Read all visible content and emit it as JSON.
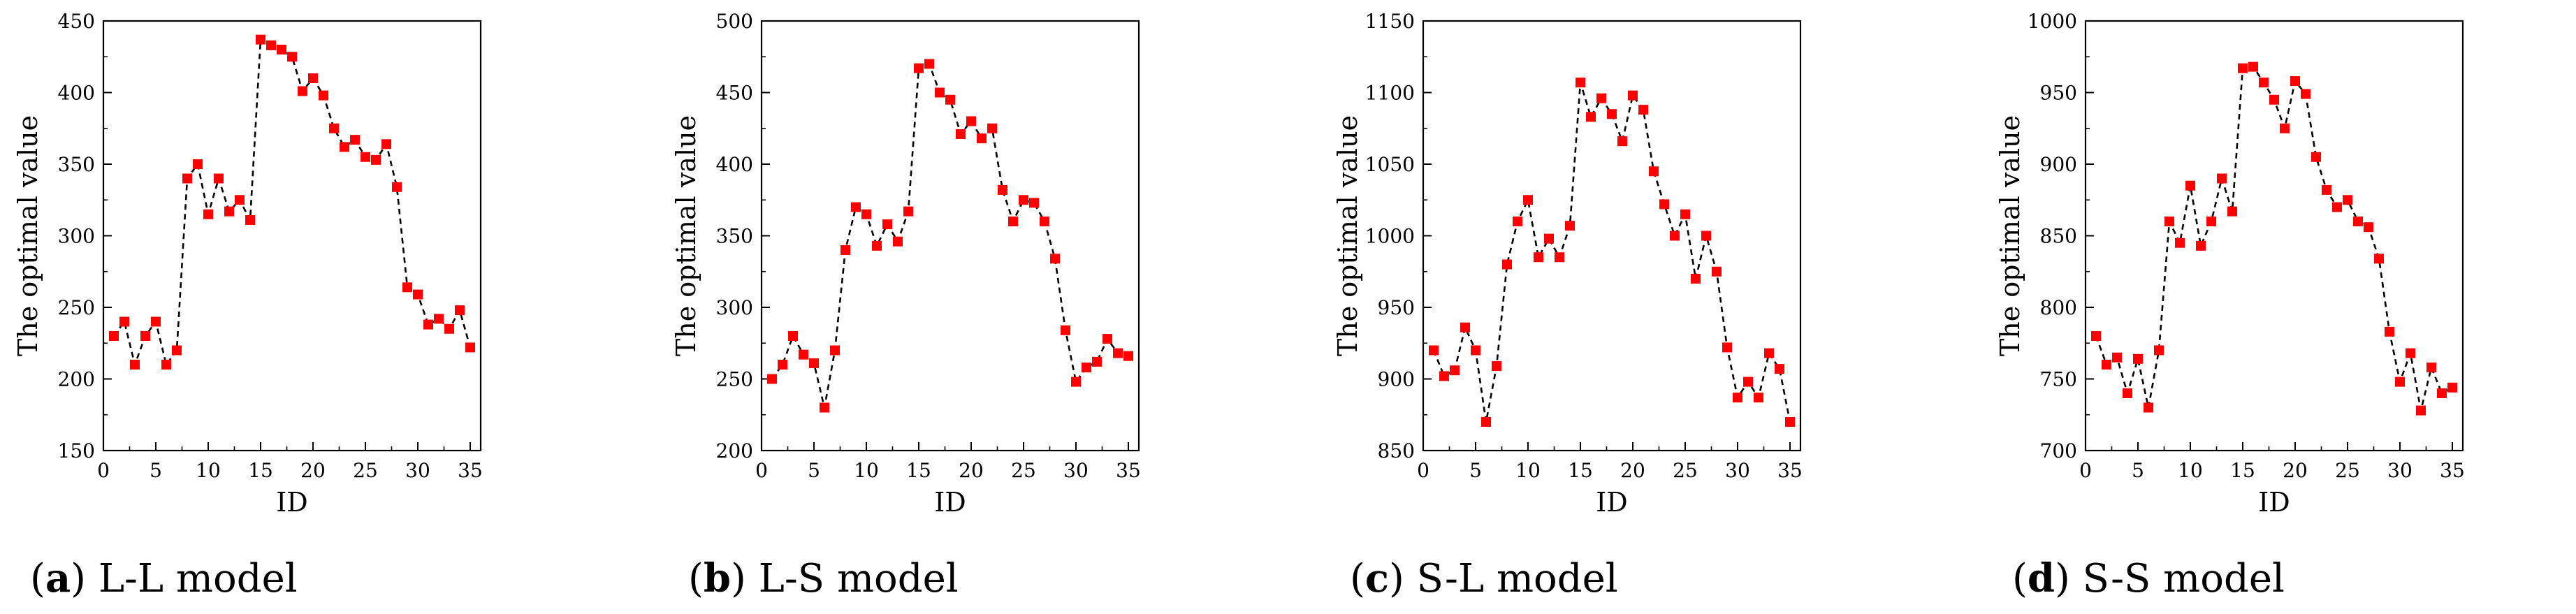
{
  "chart_data": [
    {
      "type": "line",
      "caption_letter": "a",
      "caption_text": "L-L model",
      "xlabel": "ID",
      "ylabel": "The optimal value",
      "xlim": [
        0,
        36
      ],
      "ylim": [
        150,
        450
      ],
      "xticks": [
        0,
        5,
        10,
        15,
        20,
        25,
        30,
        35
      ],
      "yticks": [
        150,
        200,
        250,
        300,
        350,
        400,
        450
      ],
      "x": [
        1,
        2,
        3,
        4,
        5,
        6,
        7,
        8,
        9,
        10,
        11,
        12,
        13,
        14,
        15,
        16,
        17,
        18,
        19,
        20,
        21,
        22,
        23,
        24,
        25,
        26,
        27,
        28,
        29,
        30,
        31,
        32,
        33,
        34,
        35
      ],
      "values": [
        230,
        240,
        210,
        230,
        240,
        210,
        220,
        340,
        350,
        315,
        340,
        317,
        325,
        311,
        437,
        433,
        430,
        425,
        401,
        410,
        398,
        375,
        362,
        367,
        355,
        353,
        364,
        334,
        264,
        259,
        238,
        242,
        235,
        248,
        222
      ]
    },
    {
      "type": "line",
      "caption_letter": "b",
      "caption_text": "L-S model",
      "xlabel": "ID",
      "ylabel": "The optimal value",
      "xlim": [
        0,
        36
      ],
      "ylim": [
        200,
        500
      ],
      "xticks": [
        0,
        5,
        10,
        15,
        20,
        25,
        30,
        35
      ],
      "yticks": [
        200,
        250,
        300,
        350,
        400,
        450,
        500
      ],
      "x": [
        1,
        2,
        3,
        4,
        5,
        6,
        7,
        8,
        9,
        10,
        11,
        12,
        13,
        14,
        15,
        16,
        17,
        18,
        19,
        20,
        21,
        22,
        23,
        24,
        25,
        26,
        27,
        28,
        29,
        30,
        31,
        32,
        33,
        34,
        35
      ],
      "values": [
        250,
        260,
        280,
        267,
        261,
        230,
        270,
        340,
        370,
        365,
        343,
        358,
        346,
        367,
        467,
        470,
        450,
        445,
        421,
        430,
        418,
        425,
        382,
        360,
        375,
        373,
        360,
        334,
        284,
        248,
        258,
        262,
        278,
        268,
        266
      ]
    },
    {
      "type": "line",
      "caption_letter": "c",
      "caption_text": "S-L model",
      "xlabel": "ID",
      "ylabel": "The optimal value",
      "xlim": [
        0,
        36
      ],
      "ylim": [
        850,
        1150
      ],
      "xticks": [
        0,
        5,
        10,
        15,
        20,
        25,
        30,
        35
      ],
      "yticks": [
        850,
        900,
        950,
        1000,
        1050,
        1100,
        1150
      ],
      "x": [
        1,
        2,
        3,
        4,
        5,
        6,
        7,
        8,
        9,
        10,
        11,
        12,
        13,
        14,
        15,
        16,
        17,
        18,
        19,
        20,
        21,
        22,
        23,
        24,
        25,
        26,
        27,
        28,
        29,
        30,
        31,
        32,
        33,
        34,
        35
      ],
      "values": [
        920,
        902,
        906,
        936,
        920,
        870,
        909,
        980,
        1010,
        1025,
        985,
        998,
        985,
        1007,
        1107,
        1083,
        1096,
        1085,
        1066,
        1098,
        1088,
        1045,
        1022,
        1000,
        1015,
        970,
        1000,
        975,
        922,
        887,
        898,
        887,
        918,
        907,
        870
      ]
    },
    {
      "type": "line",
      "caption_letter": "d",
      "caption_text": "S-S model",
      "xlabel": "ID",
      "ylabel": "The optimal value",
      "xlim": [
        0,
        36
      ],
      "ylim": [
        700,
        1000
      ],
      "xticks": [
        0,
        5,
        10,
        15,
        20,
        25,
        30,
        35
      ],
      "yticks": [
        700,
        750,
        800,
        850,
        900,
        950,
        1000
      ],
      "x": [
        1,
        2,
        3,
        4,
        5,
        6,
        7,
        8,
        9,
        10,
        11,
        12,
        13,
        14,
        15,
        16,
        17,
        18,
        19,
        20,
        21,
        22,
        23,
        24,
        25,
        26,
        27,
        28,
        29,
        30,
        31,
        32,
        33,
        34,
        35
      ],
      "values": [
        780,
        760,
        765,
        740,
        764,
        730,
        770,
        860,
        845,
        885,
        843,
        860,
        890,
        867,
        967,
        968,
        957,
        945,
        925,
        958,
        949,
        905,
        882,
        870,
        875,
        860,
        856,
        834,
        783,
        748,
        768,
        728,
        758,
        740,
        744
      ]
    }
  ],
  "colors": {
    "marker": "#ff0000",
    "line": "#000000",
    "axis": "#000000"
  }
}
